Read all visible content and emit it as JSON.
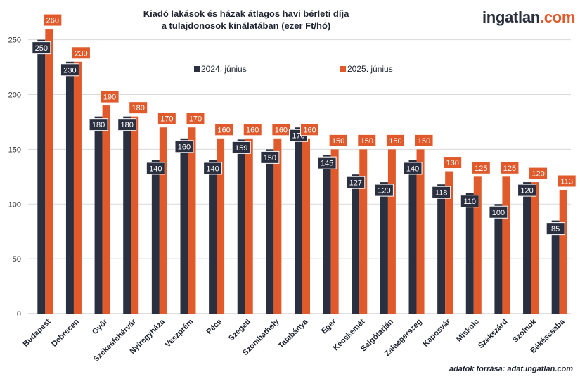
{
  "header": {
    "title_line1": "Kiadó lakások és házak átlagos havi bérleti díja",
    "title_line2": "a tulajdonosok kínálatában (ezer Ft/hó)",
    "logo_main": "ingatlan",
    "logo_suffix": ".com"
  },
  "footer": {
    "source": "adatok forrása: adat.ingatlan.com"
  },
  "chart_data": {
    "type": "bar",
    "title": "Kiadó lakások és házak átlagos havi bérleti díja a tulajdonosok kínálatában (ezer Ft/hó)",
    "xlabel": "",
    "ylabel": "",
    "ylim": [
      0,
      260
    ],
    "yticks": [
      0,
      50,
      100,
      150,
      200,
      250
    ],
    "grid": true,
    "legend_position": "top",
    "categories": [
      "Budapest",
      "Debrecen",
      "Győr",
      "Székesfehérvár",
      "Nyíregyháza",
      "Veszprém",
      "Pécs",
      "Szeged",
      "Szombathely",
      "Tatabánya",
      "Eger",
      "Kecskemét",
      "Salgótarján",
      "Zalaegerszeg",
      "Kaposvár",
      "Miskolc",
      "Szekszárd",
      "Szolnok",
      "Békéscsaba"
    ],
    "series": [
      {
        "name": "2024. június",
        "color": "#2b3040",
        "values": [
          250,
          230,
          180,
          180,
          140,
          160,
          140,
          159,
          150,
          170,
          145,
          127,
          120,
          140,
          118,
          110,
          100,
          120,
          85
        ]
      },
      {
        "name": "2025. június",
        "color": "#e05a2b",
        "values": [
          260,
          230,
          190,
          180,
          170,
          170,
          160,
          160,
          160,
          160,
          150,
          150,
          150,
          150,
          130,
          125,
          125,
          120,
          113
        ]
      }
    ]
  }
}
